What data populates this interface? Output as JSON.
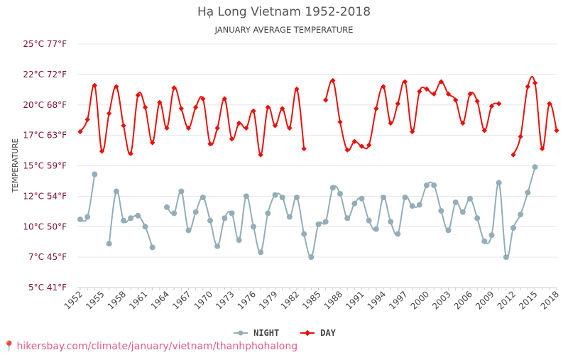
{
  "title": "Hạ Long Vietnam 1952-2018",
  "subtitle": "JANUARY AVERAGE TEMPERATURE",
  "footer": "hikersbay.com/climate/january/vietnam/thanhphohalong",
  "colors": {
    "day": "#e8120c",
    "night": "#93aeb8",
    "grid": "#e6e6e6",
    "axis_text": "#7a1030",
    "x_text": "#444444"
  },
  "chart_data": {
    "type": "line",
    "ylabel": "TEMPERATURE",
    "ylim": [
      5,
      25
    ],
    "y_ticks": [
      {
        "value": 5,
        "label": "5°C 41°F"
      },
      {
        "value": 7.5,
        "label": "7°C 45°F"
      },
      {
        "value": 10,
        "label": "10°C 50°F"
      },
      {
        "value": 12.5,
        "label": "12°C 54°F"
      },
      {
        "value": 15,
        "label": "15°C 59°F"
      },
      {
        "value": 17.5,
        "label": "17°C 63°F"
      },
      {
        "value": 20,
        "label": "20°C 68°F"
      },
      {
        "value": 22.5,
        "label": "22°C 72°F"
      },
      {
        "value": 25,
        "label": "25°C 77°F"
      }
    ],
    "x": [
      1952,
      1953,
      1954,
      1955,
      1956,
      1957,
      1958,
      1959,
      1960,
      1961,
      1962,
      1963,
      1964,
      1965,
      1966,
      1967,
      1968,
      1969,
      1970,
      1971,
      1972,
      1973,
      1974,
      1975,
      1976,
      1977,
      1978,
      1979,
      1980,
      1981,
      1982,
      1983,
      1984,
      1985,
      1986,
      1987,
      1988,
      1989,
      1990,
      1991,
      1992,
      1993,
      1994,
      1995,
      1996,
      1997,
      1998,
      1999,
      2000,
      2001,
      2002,
      2003,
      2004,
      2005,
      2006,
      2007,
      2008,
      2009,
      2010,
      2011,
      2012,
      2013,
      2014,
      2015,
      2016,
      2017,
      2018
    ],
    "x_tick_labels": [
      "1952",
      "1955",
      "1958",
      "1961",
      "1964",
      "1967",
      "1970",
      "1973",
      "1976",
      "1979",
      "1982",
      "1985",
      "1988",
      "1991",
      "1994",
      "1997",
      "2000",
      "2003",
      "2006",
      "2009",
      "2012",
      "2015",
      "2018"
    ],
    "series": [
      {
        "name": "NIGHT",
        "values": [
          10.6,
          10.8,
          14.3,
          null,
          8.6,
          12.9,
          10.5,
          10.7,
          10.9,
          10.0,
          8.3,
          null,
          11.6,
          11.1,
          12.9,
          9.7,
          11.2,
          12.4,
          10.5,
          8.4,
          10.7,
          11.1,
          8.9,
          12.5,
          10.0,
          7.9,
          11.1,
          12.6,
          12.4,
          10.8,
          12.4,
          9.4,
          7.5,
          10.2,
          10.4,
          13.2,
          12.7,
          10.7,
          11.9,
          12.3,
          10.5,
          9.8,
          12.4,
          10.4,
          9.4,
          12.4,
          11.7,
          11.8,
          13.4,
          13.4,
          11.3,
          9.7,
          12.0,
          11.2,
          12.3,
          10.7,
          8.8,
          9.3,
          13.6,
          7.5,
          9.9,
          11.0,
          12.8,
          14.9,
          null,
          null,
          null
        ],
        "color": "#93aeb8",
        "marker": "circle"
      },
      {
        "name": "DAY",
        "values": [
          17.8,
          18.8,
          21.6,
          16.2,
          19.3,
          21.5,
          18.3,
          16.0,
          20.8,
          19.8,
          16.9,
          20.2,
          18.1,
          21.4,
          19.7,
          18.1,
          19.8,
          20.5,
          16.8,
          18.1,
          20.5,
          17.2,
          18.5,
          18.1,
          19.5,
          15.9,
          19.8,
          18.3,
          19.7,
          18.1,
          21.3,
          16.4,
          null,
          null,
          20.4,
          22.0,
          18.6,
          16.3,
          17.0,
          16.6,
          16.7,
          19.7,
          21.5,
          18.5,
          20.1,
          21.9,
          17.8,
          21.1,
          21.3,
          20.9,
          21.9,
          20.9,
          20.4,
          18.5,
          20.9,
          20.3,
          17.9,
          19.9,
          20.1,
          null,
          15.9,
          17.4,
          21.5,
          21.8,
          16.4,
          20.1,
          17.9
        ],
        "color": "#e8120c",
        "marker": "diamond"
      }
    ],
    "grid": true,
    "legend_position": "bottom-center"
  }
}
